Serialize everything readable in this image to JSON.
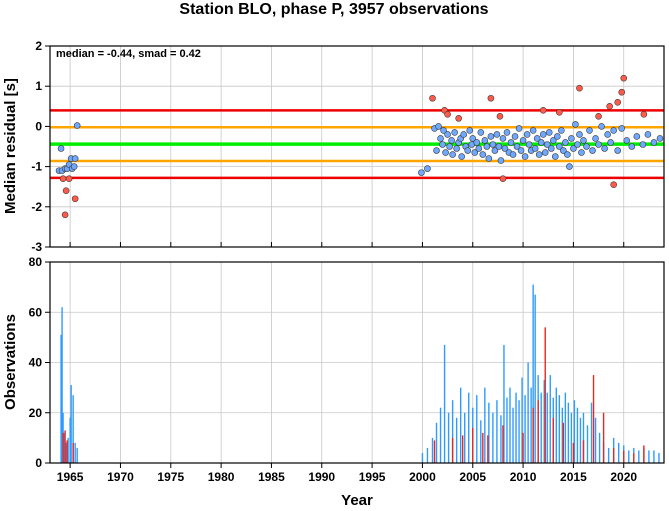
{
  "title": "Station BLO, phase P, 3957 observations",
  "colors": {
    "median_line": "#00ee00",
    "smad_band": "#ffa500",
    "limit_band": "#ee0000",
    "point_in": "#6fa8ff",
    "point_out": "#ff5a4a",
    "bar_in": "#2f9bff",
    "bar_out": "#e8281e",
    "grid": "#c8c8c8"
  },
  "chart_data": [
    {
      "type": "scatter",
      "title": "Station BLO, phase P, 3957 observations",
      "xlabel": "",
      "ylabel": "Median residual [s]",
      "xlim": [
        1963,
        2024
      ],
      "ylim": [
        -3,
        2
      ],
      "grid": true,
      "annotation": "median = -0.44, smad = 0.42",
      "y_ticks": [
        "2",
        "1",
        "0",
        "-1",
        "-2",
        "-3"
      ],
      "reference_lines": [
        {
          "name": "median",
          "y": -0.44,
          "color": "#00ee00"
        },
        {
          "name": "median + 1 smad",
          "y": -0.02,
          "color": "#ffa500"
        },
        {
          "name": "median - 1 smad",
          "y": -0.86,
          "color": "#ffa500"
        },
        {
          "name": "median + 2 smad",
          "y": 0.4,
          "color": "#ee0000"
        },
        {
          "name": "median - 2 smad",
          "y": -1.28,
          "color": "#ee0000"
        }
      ],
      "series": [
        {
          "values": [
            [
              1963.9,
              -1.1
            ],
            [
              1964.1,
              -0.55
            ],
            [
              1964.2,
              -1.1
            ],
            [
              1964.5,
              -1.05
            ],
            [
              1964.7,
              -1.05
            ],
            [
              1964.9,
              -0.95
            ],
            [
              1965.1,
              -0.8
            ],
            [
              1965.2,
              -1.05
            ],
            [
              1965.4,
              -1.0
            ],
            [
              1965.5,
              -0.8
            ],
            [
              1965.7,
              0.02
            ],
            [
              1999.9,
              -1.15
            ],
            [
              2000.5,
              -1.05
            ],
            [
              2001.2,
              -0.05
            ],
            [
              2001.4,
              -0.6
            ],
            [
              2001.6,
              0.0
            ],
            [
              2001.8,
              -0.3
            ],
            [
              2002.0,
              -0.45
            ],
            [
              2002.1,
              -0.1
            ],
            [
              2002.3,
              -0.65
            ],
            [
              2002.5,
              -0.2
            ],
            [
              2002.7,
              -0.5
            ],
            [
              2002.9,
              -0.35
            ],
            [
              2003.0,
              -0.7
            ],
            [
              2003.2,
              -0.15
            ],
            [
              2003.4,
              -0.55
            ],
            [
              2003.6,
              -0.4
            ],
            [
              2003.8,
              -0.3
            ],
            [
              2003.9,
              -0.75
            ],
            [
              2004.1,
              -0.2
            ],
            [
              2004.3,
              -0.5
            ],
            [
              2004.5,
              -0.6
            ],
            [
              2004.7,
              -0.1
            ],
            [
              2004.9,
              -0.45
            ],
            [
              2005.0,
              -0.3
            ],
            [
              2005.2,
              -0.65
            ],
            [
              2005.4,
              -0.4
            ],
            [
              2005.6,
              -0.55
            ],
            [
              2005.8,
              -0.15
            ],
            [
              2006.0,
              -0.7
            ],
            [
              2006.2,
              -0.35
            ],
            [
              2006.4,
              -0.5
            ],
            [
              2006.6,
              -0.8
            ],
            [
              2006.8,
              -0.25
            ],
            [
              2007.0,
              -0.45
            ],
            [
              2007.2,
              -0.6
            ],
            [
              2007.4,
              -0.2
            ],
            [
              2007.6,
              -0.5
            ],
            [
              2007.8,
              -0.85
            ],
            [
              2008.0,
              -0.3
            ],
            [
              2008.2,
              -0.55
            ],
            [
              2008.4,
              -0.15
            ],
            [
              2008.6,
              -0.65
            ],
            [
              2008.8,
              -0.4
            ],
            [
              2009.0,
              -0.7
            ],
            [
              2009.2,
              -0.25
            ],
            [
              2009.4,
              -0.5
            ],
            [
              2009.6,
              -0.05
            ],
            [
              2009.8,
              -0.6
            ],
            [
              2010.0,
              -0.35
            ],
            [
              2010.2,
              -0.75
            ],
            [
              2010.4,
              -0.2
            ],
            [
              2010.6,
              -0.45
            ],
            [
              2010.8,
              -0.6
            ],
            [
              2011.0,
              -0.1
            ],
            [
              2011.2,
              -0.55
            ],
            [
              2011.4,
              -0.3
            ],
            [
              2011.6,
              -0.7
            ],
            [
              2011.8,
              -0.4
            ],
            [
              2012.0,
              -0.2
            ],
            [
              2012.2,
              -0.65
            ],
            [
              2012.4,
              -0.45
            ],
            [
              2012.6,
              -0.15
            ],
            [
              2012.8,
              -0.55
            ],
            [
              2013.0,
              -0.35
            ],
            [
              2013.2,
              -0.75
            ],
            [
              2013.4,
              -0.25
            ],
            [
              2013.6,
              -0.5
            ],
            [
              2013.8,
              -0.1
            ],
            [
              2014.0,
              -0.6
            ],
            [
              2014.2,
              -0.4
            ],
            [
              2014.4,
              -0.7
            ],
            [
              2014.6,
              -1.0
            ],
            [
              2014.8,
              -0.3
            ],
            [
              2015.0,
              -0.55
            ],
            [
              2015.2,
              0.05
            ],
            [
              2015.4,
              -0.45
            ],
            [
              2015.6,
              -0.2
            ],
            [
              2015.8,
              -0.65
            ],
            [
              2016.0,
              -0.35
            ],
            [
              2016.3,
              -0.5
            ],
            [
              2016.6,
              -0.1
            ],
            [
              2016.9,
              -0.6
            ],
            [
              2017.2,
              -0.3
            ],
            [
              2017.5,
              -0.45
            ],
            [
              2017.8,
              0.0
            ],
            [
              2018.1,
              -0.55
            ],
            [
              2018.4,
              -0.2
            ],
            [
              2018.7,
              -0.4
            ],
            [
              2019.0,
              -0.1
            ],
            [
              2019.4,
              -0.6
            ],
            [
              2019.8,
              -0.05
            ],
            [
              2020.3,
              -0.35
            ],
            [
              2020.8,
              -0.5
            ],
            [
              2021.3,
              -0.25
            ],
            [
              2021.9,
              -0.45
            ],
            [
              2022.4,
              -0.2
            ],
            [
              2023.0,
              -0.4
            ],
            [
              2023.6,
              -0.3
            ]
          ]
        },
        {
          "values": [
            [
              1964.3,
              -1.3
            ],
            [
              1964.5,
              -2.2
            ],
            [
              1964.6,
              -1.6
            ],
            [
              1964.9,
              -1.3
            ],
            [
              1965.5,
              -1.8
            ],
            [
              2001.0,
              0.7
            ],
            [
              2002.2,
              0.4
            ],
            [
              2002.5,
              0.3
            ],
            [
              2003.6,
              0.2
            ],
            [
              2006.8,
              0.7
            ],
            [
              2007.7,
              0.25
            ],
            [
              2008.0,
              -1.3
            ],
            [
              2012.0,
              0.4
            ],
            [
              2013.6,
              0.35
            ],
            [
              2015.6,
              0.95
            ],
            [
              2017.5,
              0.25
            ],
            [
              2018.6,
              0.5
            ],
            [
              2019.0,
              -1.45
            ],
            [
              2019.4,
              0.6
            ],
            [
              2019.8,
              0.85
            ],
            [
              2020.0,
              1.2
            ],
            [
              2022.0,
              0.3
            ]
          ]
        }
      ]
    },
    {
      "type": "bar",
      "xlabel": "Year",
      "ylabel": "Observations",
      "xlim": [
        1963,
        2024
      ],
      "ylim": [
        0,
        80
      ],
      "grid": true,
      "x_ticks": [
        "1965",
        "1970",
        "1975",
        "1980",
        "1985",
        "1990",
        "1995",
        "2000",
        "2005",
        "2010",
        "2015",
        "2020"
      ],
      "y_ticks": [
        "80",
        "60",
        "40",
        "20",
        "0"
      ],
      "series": [
        {
          "values": [
            [
              1964.1,
              51
            ],
            [
              1964.2,
              62
            ],
            [
              1964.3,
              20
            ],
            [
              1964.4,
              12
            ],
            [
              1964.6,
              8
            ],
            [
              1964.8,
              10
            ],
            [
              1965.0,
              18
            ],
            [
              1965.1,
              31
            ],
            [
              1965.3,
              27
            ],
            [
              1965.5,
              8
            ],
            [
              1965.7,
              6
            ],
            [
              2000.0,
              4
            ],
            [
              2000.5,
              6
            ],
            [
              2001.0,
              10
            ],
            [
              2001.4,
              16
            ],
            [
              2001.8,
              22
            ],
            [
              2002.2,
              47
            ],
            [
              2002.6,
              20
            ],
            [
              2003.0,
              25
            ],
            [
              2003.4,
              18
            ],
            [
              2003.8,
              30
            ],
            [
              2004.2,
              20
            ],
            [
              2004.6,
              28
            ],
            [
              2005.0,
              22
            ],
            [
              2005.4,
              27
            ],
            [
              2005.8,
              17
            ],
            [
              2006.2,
              30
            ],
            [
              2006.6,
              24
            ],
            [
              2007.0,
              20
            ],
            [
              2007.4,
              25
            ],
            [
              2007.8,
              19
            ],
            [
              2008.1,
              47
            ],
            [
              2008.4,
              26
            ],
            [
              2008.7,
              30
            ],
            [
              2009.0,
              22
            ],
            [
              2009.3,
              28
            ],
            [
              2009.6,
              25
            ],
            [
              2009.9,
              34
            ],
            [
              2010.2,
              27
            ],
            [
              2010.5,
              40
            ],
            [
              2010.8,
              30
            ],
            [
              2011.0,
              71
            ],
            [
              2011.2,
              67
            ],
            [
              2011.5,
              35
            ],
            [
              2011.8,
              28
            ],
            [
              2012.1,
              33
            ],
            [
              2012.4,
              28
            ],
            [
              2012.7,
              35
            ],
            [
              2013.0,
              26
            ],
            [
              2013.3,
              30
            ],
            [
              2013.6,
              27
            ],
            [
              2013.9,
              22
            ],
            [
              2014.2,
              28
            ],
            [
              2014.5,
              24
            ],
            [
              2014.8,
              20
            ],
            [
              2015.1,
              25
            ],
            [
              2015.4,
              22
            ],
            [
              2015.7,
              18
            ],
            [
              2016.0,
              20
            ],
            [
              2016.4,
              15
            ],
            [
              2016.8,
              24
            ],
            [
              2017.2,
              18
            ],
            [
              2017.6,
              12
            ],
            [
              2018.0,
              8
            ],
            [
              2018.5,
              6
            ],
            [
              2019.0,
              10
            ],
            [
              2019.5,
              8
            ],
            [
              2020.0,
              7
            ],
            [
              2020.5,
              5
            ],
            [
              2021.0,
              6
            ],
            [
              2021.5,
              5
            ],
            [
              2022.0,
              6
            ],
            [
              2022.5,
              5
            ],
            [
              2023.0,
              5
            ],
            [
              2023.5,
              4
            ]
          ]
        },
        {
          "values": [
            [
              1964.3,
              12
            ],
            [
              1964.5,
              13
            ],
            [
              1964.7,
              9
            ],
            [
              1965.3,
              8
            ],
            [
              2001.2,
              9
            ],
            [
              2003.0,
              10
            ],
            [
              2004.0,
              11
            ],
            [
              2005.0,
              14
            ],
            [
              2006.0,
              12
            ],
            [
              2006.5,
              11
            ],
            [
              2008.0,
              15
            ],
            [
              2010.0,
              12
            ],
            [
              2011.0,
              22
            ],
            [
              2011.5,
              25
            ],
            [
              2012.2,
              54
            ],
            [
              2013.0,
              18
            ],
            [
              2014.0,
              16
            ],
            [
              2015.0,
              8
            ],
            [
              2016.0,
              9
            ],
            [
              2017.0,
              35
            ],
            [
              2018.0,
              20
            ],
            [
              2019.0,
              6
            ],
            [
              2020.0,
              5
            ],
            [
              2021.0,
              4
            ],
            [
              2022.0,
              7
            ]
          ]
        }
      ]
    }
  ]
}
